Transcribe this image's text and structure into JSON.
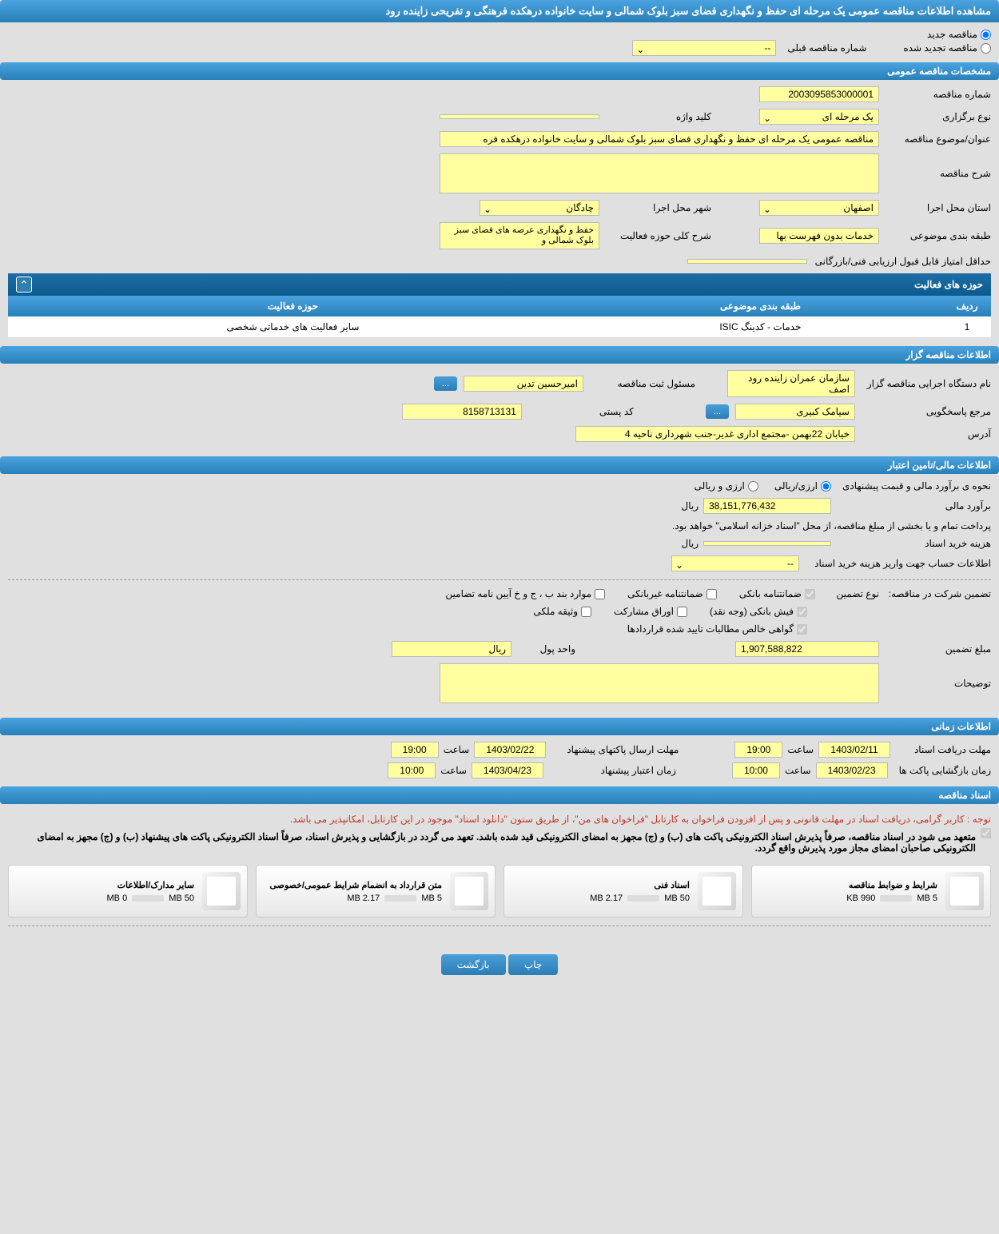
{
  "page_title": "مشاهده اطلاعات مناقصه عمومی یک مرحله ای حفظ و نگهداری فضای سبز بلوک شمالی و سایت خانواده درهکده فرهنگی و تفریحی زاینده رود",
  "tender_type": {
    "new_label": "مناقصه جدید",
    "renewed_label": "مناقصه تجدید شده",
    "prev_number_label": "شماره مناقصه قبلی",
    "prev_number_value": "--"
  },
  "sections": {
    "general": {
      "title": "مشخصات مناقصه عمومی",
      "tender_number_label": "شماره مناقصه",
      "tender_number": "2003095853000001",
      "holding_type_label": "نوع برگزاری",
      "holding_type": "یک مرحله ای",
      "keyword_label": "کلید واژه",
      "keyword": "",
      "subject_label": "عنوان/موضوع مناقصه",
      "subject": "مناقصه عمومی یک مرحله ای حفظ و نگهداری فضای سبز بلوک شمالی و سایت خانواده درهکده فره",
      "description_label": "شرح مناقصه",
      "description": "",
      "province_label": "استان محل اجرا",
      "province": "اصفهان",
      "city_label": "شهر محل اجرا",
      "city": "چادگان",
      "category_label": "طبقه بندی موضوعی",
      "category": "خدمات بدون فهرست بها",
      "scope_label": "شرح کلی حوزه فعالیت",
      "scope": "حفظ و نگهداری عرصه های فضای سبز بلوک شمالی و",
      "min_score_label": "حداقل امتیاز قابل قبول ارزیابی فنی/بازرگانی",
      "min_score": ""
    },
    "activity_areas": {
      "title": "حوزه های فعالیت",
      "columns": [
        "ردیف",
        "طبقه بندی موضوعی",
        "حوزه فعالیت"
      ],
      "rows": [
        [
          "1",
          "خدمات - کدینگ ISIC",
          "سایر فعالیت های خدماتی شخصی"
        ]
      ]
    },
    "organizer": {
      "title": "اطلاعات مناقصه گزار",
      "org_label": "نام دستگاه اجرایی مناقصه گزار",
      "org_name": "سازمان عمران زاینده رود اصف",
      "reg_officer_label": "مسئول ثبت مناقصه",
      "reg_officer": "امیرحسین تدین",
      "contact_label": "مرجع پاسخگویی",
      "contact": "سیامک کبیری",
      "postal_code_label": "کد پستی",
      "postal_code": "8158713131",
      "address_label": "آدرس",
      "address": "خیابان 22بهمن -مجتمع اداری غدیر-جنب شهرداری ناحیه 4"
    },
    "financial": {
      "title": "اطلاعات مالی/تامین اعتبار",
      "estimate_method_label": "نحوه ی برآورد مالی و قیمت پیشنهادی",
      "rial_label": "ارزی/ریالی",
      "currency_rial_label": "ارزی و ریالی",
      "estimate_label": "برآورد مالی",
      "estimate": "38,151,776,432",
      "unit": "ریال",
      "payment_note": "پرداخت تمام و یا بخشی از مبلغ مناقصه، از محل \"اسناد خزانه اسلامی\" خواهد بود.",
      "doc_cost_label": "هزینه خرید اسناد",
      "doc_cost": "",
      "account_info_label": "اطلاعات حساب جهت واریز هزینه خرید اسناد",
      "account_info": "--",
      "guarantee_label": "تضمین شرکت در مناقصه:",
      "guarantee_type_label": "نوع تضمین",
      "checkboxes": {
        "bank_guarantee": "ضمانتنامه بانکی",
        "nonbank_guarantee": "ضمانتنامه غیربانکی",
        "items_bcj": "موارد بند ب ، ج و خ آیین نامه تضامین",
        "bank_slip": "فیش بانکی (وجه نقد)",
        "participation_papers": "اوراق مشارکت",
        "property_deed": "وثیقه ملکی",
        "contract_receivables": "گواهی خالص مطالبات تایید شده قراردادها"
      },
      "guarantee_amount_label": "مبلغ تضمین",
      "guarantee_amount": "1,907,588,822",
      "currency_unit_label": "واحد پول",
      "currency_unit": "ریال",
      "notes_label": "توضیحات",
      "notes": ""
    },
    "timing": {
      "title": "اطلاعات زمانی",
      "doc_deadline_label": "مهلت دریافت اسناد",
      "doc_deadline_date": "1403/02/11",
      "doc_deadline_time_label": "ساعت",
      "doc_deadline_time": "19:00",
      "packet_deadline_label": "مهلت ارسال پاکتهای پیشنهاد",
      "packet_deadline_date": "1403/02/22",
      "packet_deadline_time": "19:00",
      "opening_label": "زمان بازگشایی پاکت ها",
      "opening_date": "1403/02/23",
      "opening_time": "10:00",
      "validity_label": "زمان اعتبار پیشنهاد",
      "validity_date": "1403/04/23",
      "validity_time": "10:00"
    },
    "documents": {
      "title": "اسناد مناقصه",
      "note1": "توجه : کاربر گرامی، دریافت اسناد در مهلت قانونی و پس از افزودن فراخوان به کارتابل \"فراخوان های من\"، از طریق ستون \"دانلود اسناد\" موجود در این کارتابل، امکانپذیر می باشد.",
      "note2": "متعهد می شود در اسناد مناقصه، صرفاً پذیرش اسناد الکترونیکی پاکت های (ب) و (ج) مجهز به امضای الکترونیکی قید شده باشد. تعهد می گردد در بازگشایی و پذیرش اسناد، صرفاً اسناد الکترونیکی پاکت های پیشنهاد (ب) و (ج) مجهز به امضای الکترونیکی صاحبان امضای مجاز مورد پذیرش واقع گردد.",
      "files": [
        {
          "name": "شرایط و ضوابط مناقصه",
          "size": "990 KB",
          "max": "5 MB",
          "progress": 20
        },
        {
          "name": "اسناد فنی",
          "size": "2.17 MB",
          "max": "50 MB",
          "progress": 5
        },
        {
          "name": "متن قرارداد به انضمام شرایط عمومی/خصوصی",
          "size": "2.17 MB",
          "max": "5 MB",
          "progress": 45
        },
        {
          "name": "سایر مدارک/اطلاعات",
          "size": "0 MB",
          "max": "50 MB",
          "progress": 0
        }
      ]
    }
  },
  "buttons": {
    "print": "چاپ",
    "back": "بازگشت",
    "more": "..."
  }
}
